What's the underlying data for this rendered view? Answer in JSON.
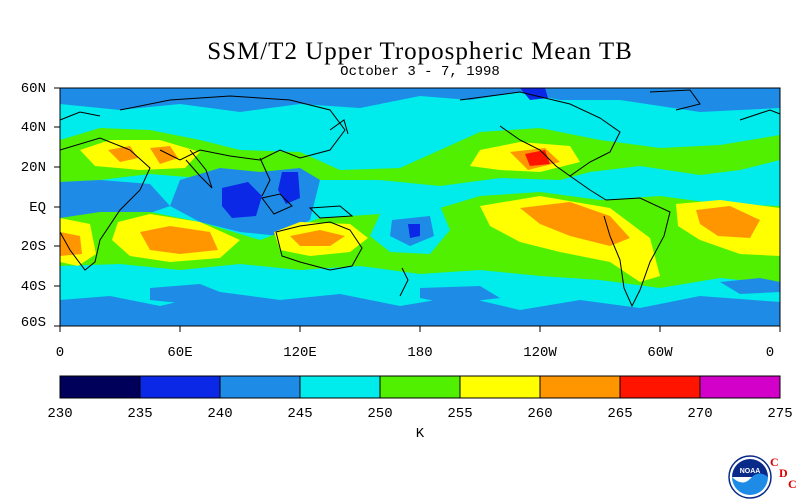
{
  "title": "SSM/T2 Upper Tropospheric Mean TB",
  "subtitle": "October 3 - 7, 1998",
  "lat_labels": [
    "60N",
    "40N",
    "20N",
    "EQ",
    "20S",
    "40S",
    "60S"
  ],
  "lon_labels": [
    "0",
    "60E",
    "120E",
    "180",
    "120W",
    "60W",
    "0"
  ],
  "colorbar": {
    "ticks": [
      "230",
      "235",
      "240",
      "245",
      "250",
      "255",
      "260",
      "265",
      "270",
      "275"
    ],
    "colors": [
      "#00005a",
      "#0a28e6",
      "#1e8ce6",
      "#00ebeb",
      "#50f000",
      "#ffff00",
      "#ff9600",
      "#ff1400",
      "#d200c8"
    ],
    "unit": "K"
  },
  "logo": {
    "text": "NOAA",
    "letters": [
      "C",
      "D",
      "C"
    ]
  },
  "fill_colors": {
    "cb240_245": "#1e8ce6",
    "cb245_250": "#00ebeb",
    "cb250_255": "#50f000",
    "cb255_260": "#ffff00",
    "cb260_265": "#ff9600",
    "cb265_270": "#ff1400",
    "cb235_240": "#0a28e6"
  }
}
